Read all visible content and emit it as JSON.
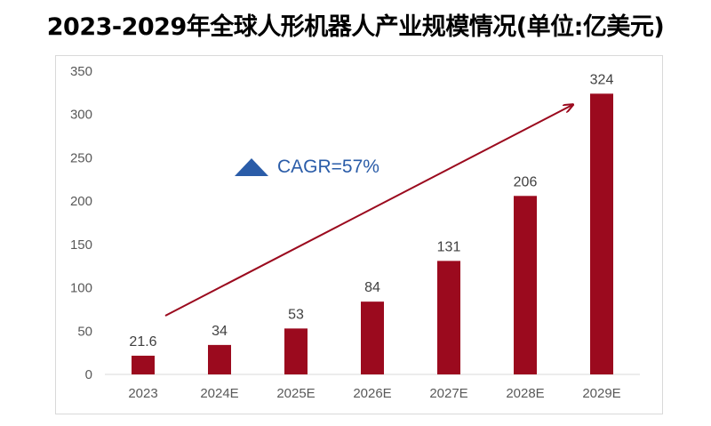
{
  "title": "2023-2029年全球人形机器人产业规模情况(单位:亿美元)",
  "colors": {
    "bar": "#9b0a1e",
    "arrow": "#9b0a1e",
    "triangle": "#2a5ca8",
    "cagr_text": "#2a5ca8"
  },
  "annotation": {
    "text": "CAGR=57%",
    "icon": "triangle-up-icon"
  },
  "chart_data": {
    "type": "bar",
    "title": "2023-2029年全球人形机器人产业规模情况(单位:亿美元)",
    "categories": [
      "2023",
      "2024E",
      "2025E",
      "2026E",
      "2027E",
      "2028E",
      "2029E"
    ],
    "values": [
      21.6,
      34,
      53,
      84,
      131,
      206,
      324
    ],
    "data_labels": [
      "21.6",
      "34",
      "53",
      "84",
      "131",
      "206",
      "324"
    ],
    "yticks": [
      0,
      50,
      100,
      150,
      200,
      250,
      300,
      350
    ],
    "ylim": [
      0,
      350
    ],
    "xlabel": "",
    "ylabel": "",
    "grid": false,
    "legend": "none"
  }
}
